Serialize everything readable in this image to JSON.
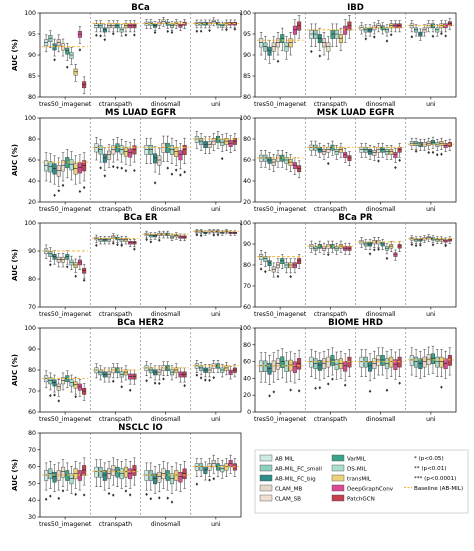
{
  "colors": {
    "models": [
      "#cfe9e4",
      "#8fcfc0",
      "#2e8d89",
      "#e2d9c8",
      "#eedfd0",
      "#3aa58a",
      "#a8e0ca",
      "#eed27a",
      "#d94a93",
      "#c2404f"
    ],
    "baseline": "#f4b63c",
    "significance": "#e03a3a"
  },
  "legend": {
    "entries": [
      "AB MIL",
      "AB-MIL_FC_small",
      "AB-MIL_FC_big",
      "CLAM_MB",
      "CLAM_SB",
      "VarMIL",
      "DS-MIL",
      "transMIL",
      "DeepGraphConv",
      "PatchGCN"
    ],
    "significance_labels": [
      "* (p<0.05)",
      "** (p<0.01)",
      "*** (p<0.0001)"
    ],
    "baseline_label": "Baseline (AB-MIL)"
  },
  "chart_data": [
    {
      "type": "box",
      "title": "BCa",
      "ylabel": "AUC (%)",
      "ylim": [
        80,
        100
      ],
      "yticks": [
        80,
        85,
        90,
        95,
        100
      ],
      "categories": [
        "tres50_imagenet",
        "ctranspath",
        "dinosmall",
        "uni"
      ],
      "baseline": [
        92,
        97.5,
        97.5,
        97.5
      ],
      "spread": [
        1.5,
        1,
        0.8,
        0.7
      ],
      "medians": [
        [
          93,
          94,
          92,
          93,
          92,
          91,
          90,
          86,
          95,
          83
        ],
        [
          97,
          97,
          96,
          97,
          97,
          97,
          96,
          97,
          97,
          97
        ],
        [
          97.5,
          97.5,
          97,
          97.5,
          98,
          97.5,
          97,
          97.5,
          97,
          97.5
        ],
        [
          97.5,
          97.5,
          97.5,
          97.5,
          98,
          97.5,
          97,
          97.5,
          97.5,
          97.5
        ]
      ]
    },
    {
      "type": "box",
      "title": "IBD",
      "ylabel": "",
      "ylim": [
        80,
        100
      ],
      "yticks": [
        80,
        85,
        90,
        95,
        100
      ],
      "categories": [
        "tres50_imagenet",
        "ctranspath",
        "dinosmall",
        "uni"
      ],
      "baseline": [
        93.5,
        96,
        96.5,
        97
      ],
      "spread": [
        2,
        2,
        1,
        1
      ],
      "medians": [
        [
          93,
          92,
          91,
          92,
          93,
          94,
          92,
          93,
          96,
          97
        ],
        [
          95,
          95,
          94,
          93,
          92,
          95,
          95,
          94,
          96,
          97
        ],
        [
          96.5,
          96,
          96,
          96.5,
          97,
          96.5,
          96,
          97,
          97,
          97
        ],
        [
          97,
          96,
          95,
          96,
          97,
          97,
          96,
          97,
          97,
          97.5
        ]
      ]
    },
    {
      "type": "box",
      "title": "MS LUAD EGFR",
      "ylabel": "AUC (%)",
      "ylim": [
        20,
        100
      ],
      "yticks": [
        20,
        40,
        60,
        80,
        100
      ],
      "categories": [
        "tres50_imagenet",
        "ctranspath",
        "dinosmall",
        "uni"
      ],
      "baseline": [
        58,
        72,
        72,
        80
      ],
      "spread": [
        10,
        8,
        9,
        6
      ],
      "medians": [
        [
          55,
          54,
          52,
          50,
          55,
          58,
          56,
          52,
          53,
          55
        ],
        [
          72,
          70,
          62,
          65,
          70,
          72,
          70,
          68,
          67,
          70
        ],
        [
          70,
          70,
          62,
          60,
          72,
          72,
          70,
          68,
          65,
          70
        ],
        [
          80,
          78,
          75,
          75,
          78,
          80,
          77,
          78,
          76,
          78
        ]
      ]
    },
    {
      "type": "box",
      "title": "MSK LUAD EGFR",
      "ylabel": "",
      "ylim": [
        20,
        100
      ],
      "yticks": [
        20,
        40,
        60,
        80,
        100
      ],
      "categories": [
        "tres50_imagenet",
        "ctranspath",
        "dinosmall",
        "uni"
      ],
      "baseline": [
        62,
        72,
        72,
        75
      ],
      "spread": [
        6,
        5,
        5,
        4
      ],
      "medians": [
        [
          62,
          62,
          60,
          58,
          62,
          62,
          60,
          58,
          55,
          52
        ],
        [
          72,
          72,
          70,
          68,
          70,
          72,
          68,
          70,
          65,
          62
        ],
        [
          70,
          70,
          68,
          67,
          70,
          70,
          68,
          68,
          65,
          70
        ],
        [
          76,
          76,
          75,
          75,
          76,
          77,
          75,
          76,
          74,
          75
        ]
      ]
    },
    {
      "type": "box",
      "title": "BCa ER",
      "ylabel": "AUC (%)",
      "ylim": [
        70,
        100
      ],
      "yticks": [
        70,
        80,
        90,
        100
      ],
      "categories": [
        "tres50_imagenet",
        "ctranspath",
        "dinosmall",
        "uni"
      ],
      "baseline": [
        90,
        94.5,
        96,
        97
      ],
      "spread": [
        1.8,
        1,
        0.9,
        0.6
      ],
      "medians": [
        [
          90,
          89,
          88,
          87,
          87,
          88,
          86,
          85,
          86,
          83
        ],
        [
          94.5,
          94,
          94,
          94,
          95,
          94.5,
          94,
          94,
          93,
          93
        ],
        [
          96,
          95.5,
          95.5,
          96,
          96,
          96,
          95,
          95.5,
          95,
          95
        ],
        [
          97,
          97,
          96.5,
          97,
          97,
          97,
          96.5,
          97,
          96.5,
          96.5
        ]
      ]
    },
    {
      "type": "box",
      "title": "BCa PR",
      "ylabel": "",
      "ylim": [
        60,
        100
      ],
      "yticks": [
        60,
        70,
        80,
        90,
        100
      ],
      "categories": [
        "tres50_imagenet",
        "ctranspath",
        "dinosmall",
        "uni"
      ],
      "baseline": [
        84,
        89,
        91,
        92.5
      ],
      "spread": [
        2.5,
        2,
        1.8,
        1.2
      ],
      "medians": [
        [
          84,
          83,
          81,
          78,
          80,
          82,
          80,
          80,
          80,
          82
        ],
        [
          89,
          88,
          89,
          88,
          89,
          89,
          88,
          89,
          88,
          88
        ],
        [
          91,
          90,
          90,
          91,
          91,
          90,
          88,
          89,
          85,
          89
        ],
        [
          92.5,
          92,
          92,
          92.5,
          93,
          92.5,
          92,
          92,
          91.5,
          92
        ]
      ]
    },
    {
      "type": "box",
      "title": "BCa HER2",
      "ylabel": "AUC (%)",
      "ylim": [
        60,
        100
      ],
      "yticks": [
        60,
        70,
        80,
        90,
        100
      ],
      "categories": [
        "tres50_imagenet",
        "ctranspath",
        "dinosmall",
        "uni"
      ],
      "baseline": [
        76,
        80,
        81,
        82
      ],
      "spread": [
        3,
        2.5,
        2.5,
        2.2
      ],
      "medians": [
        [
          76,
          75,
          74,
          72,
          75,
          76,
          74,
          73,
          72,
          70
        ],
        [
          80,
          79,
          78,
          78,
          80,
          80,
          78,
          79,
          77,
          77
        ],
        [
          81,
          80,
          79,
          79,
          81,
          81,
          79,
          80,
          78,
          78
        ],
        [
          82,
          81,
          80,
          80,
          82,
          82,
          80,
          81,
          79,
          80
        ]
      ]
    },
    {
      "type": "box",
      "title": "BIOME HRD",
      "ylabel": "",
      "ylim": [
        0,
        100
      ],
      "yticks": [
        0,
        20,
        40,
        60,
        80,
        100
      ],
      "categories": [
        "tres50_imagenet",
        "ctranspath",
        "dinosmall",
        "uni"
      ],
      "baseline": [
        55,
        60,
        60,
        62
      ],
      "spread": [
        13,
        12,
        12,
        12
      ],
      "medians": [
        [
          55,
          55,
          52,
          55,
          58,
          60,
          55,
          56,
          54,
          58
        ],
        [
          60,
          58,
          56,
          58,
          60,
          62,
          57,
          58,
          55,
          60
        ],
        [
          60,
          60,
          55,
          58,
          62,
          62,
          58,
          60,
          57,
          60
        ],
        [
          62,
          60,
          58,
          60,
          63,
          64,
          60,
          60,
          58,
          62
        ]
      ]
    },
    {
      "type": "box",
      "title": "NSCLC IO",
      "ylabel": "AUC (%)",
      "ylim": [
        30,
        80
      ],
      "yticks": [
        30,
        40,
        50,
        60,
        70,
        80
      ],
      "categories": [
        "tres50_imagenet",
        "ctranspath",
        "dinosmall",
        "uni"
      ],
      "baseline": [
        55,
        57,
        55,
        60
      ],
      "spread": [
        6,
        6,
        6,
        4
      ],
      "medians": [
        [
          55,
          56,
          54,
          55,
          57,
          55,
          53,
          56,
          55,
          58
        ],
        [
          57,
          57,
          55,
          56,
          58,
          57,
          56,
          57,
          56,
          58
        ],
        [
          55,
          55,
          53,
          54,
          56,
          55,
          53,
          55,
          54,
          56
        ],
        [
          60,
          60,
          58,
          60,
          62,
          60,
          59,
          60,
          62,
          60
        ]
      ]
    }
  ]
}
